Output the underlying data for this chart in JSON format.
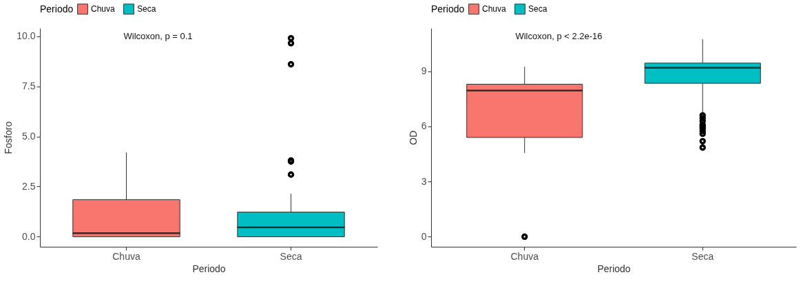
{
  "chart_data": [
    {
      "type": "box",
      "xlabel": "Periodo",
      "ylabel": "Fosforo",
      "legend_title": "Periodo",
      "legend": "top",
      "categories": [
        "Chuva",
        "Seca"
      ],
      "series": [
        {
          "name": "Chuva",
          "color": "#f8766d",
          "boxes": [
            {
              "low": 0,
              "q1": 0,
              "median": 0.18,
              "q3": 1.85,
              "high": 4.2
            },
            null
          ]
        },
        {
          "name": "Seca",
          "color": "#00bfc4",
          "boxes": [
            null,
            {
              "low": 0,
              "q1": 0,
              "median": 0.47,
              "q3": 1.23,
              "high": 2.15,
              "outliers": [
                3.1,
                3.75,
                3.8,
                8.6,
                9.65,
                9.9
              ]
            }
          ]
        }
      ],
      "ylim": [
        -0.5,
        10.4
      ],
      "yticks": [
        {
          "value": 0,
          "label": "0.0"
        },
        {
          "value": 2.5,
          "label": "2.5"
        },
        {
          "value": 5,
          "label": "5.0"
        },
        {
          "value": 7.5,
          "label": "7.5"
        },
        {
          "value": 10,
          "label": "10.0"
        }
      ],
      "annotations": [
        "Wilcoxon, p = 0.1"
      ]
    },
    {
      "type": "box",
      "xlabel": "Periodo",
      "ylabel": "OD",
      "legend_title": "Periodo",
      "legend": "top",
      "categories": [
        "Chuva",
        "Seca"
      ],
      "series": [
        {
          "name": "Chuva",
          "color": "#f8766d",
          "boxes": [
            {
              "low": 4.55,
              "q1": 5.4,
              "median": 7.95,
              "q3": 8.3,
              "high": 9.25,
              "outliers": [
                0
              ]
            },
            null
          ]
        },
        {
          "name": "Seca",
          "color": "#00bfc4",
          "boxes": [
            null,
            {
              "low": 6.7,
              "q1": 8.35,
              "median": 9.2,
              "q3": 9.45,
              "high": 10.75,
              "outliers": [
                6.6,
                6.45,
                6.3,
                6.1,
                6.0,
                5.9,
                5.75,
                5.6,
                5.2,
                4.85
              ]
            }
          ]
        }
      ],
      "ylim": [
        -0.55,
        11.35
      ],
      "yticks": [
        0,
        3,
        6,
        9
      ],
      "annotations": [
        "Wilcoxon, p < 2.2e-16"
      ]
    }
  ]
}
